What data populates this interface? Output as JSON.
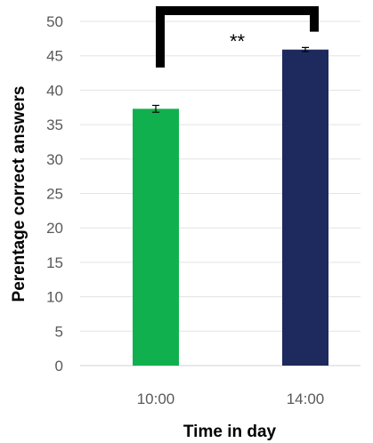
{
  "chart_data": {
    "type": "bar",
    "categories": [
      "10:00",
      "14:00"
    ],
    "values": [
      37.3,
      45.9
    ],
    "errors": [
      0.5,
      0.3
    ],
    "colors": [
      "#11b04e",
      "#1e2a5e"
    ],
    "xlabel": "Time in day",
    "ylabel": "Perentage correct answers",
    "ylim": [
      0,
      50
    ],
    "yticks": [
      0,
      5,
      10,
      15,
      20,
      25,
      30,
      35,
      40,
      45,
      50
    ],
    "grid": true,
    "annotation": {
      "text": "**",
      "between": [
        "10:00",
        "14:00"
      ]
    }
  }
}
